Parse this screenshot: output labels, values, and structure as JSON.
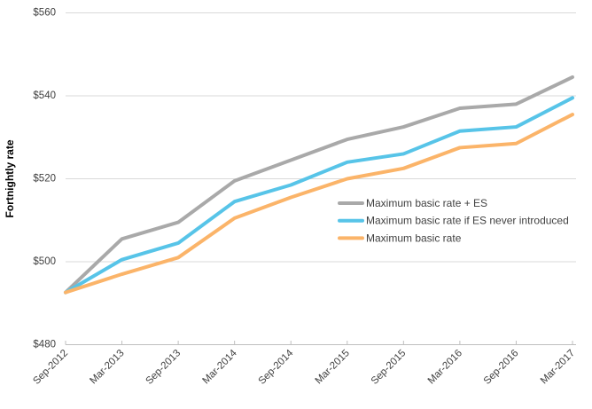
{
  "chart_data": {
    "type": "line",
    "title": "",
    "xlabel": "",
    "ylabel": "Fortnightly rate",
    "ylim": [
      480,
      560
    ],
    "ytick_values": [
      480,
      500,
      520,
      540,
      560
    ],
    "ytick_labels": [
      "$480",
      "$500",
      "$520",
      "$540",
      "$560"
    ],
    "grid": "horizontal-only",
    "legend_position": "inside-right-middle",
    "categories": [
      "Sep-2012",
      "Mar-2013",
      "Sep-2013",
      "Mar-2014",
      "Sep-2014",
      "Mar-2015",
      "Sep-2015",
      "Mar-2016",
      "Sep-2016",
      "Mar-2017"
    ],
    "series": [
      {
        "name": "Maximum basic rate + ES",
        "color": "#A9A9A9",
        "values": [
          492.6,
          505.5,
          509.5,
          519.5,
          524.5,
          529.5,
          532.5,
          537.0,
          538.0,
          544.5
        ]
      },
      {
        "name": "Maximum basic rate if ES never introduced",
        "color": "#57C4E8",
        "values": [
          492.6,
          500.5,
          504.5,
          514.5,
          518.5,
          524.0,
          526.0,
          531.5,
          532.5,
          539.5
        ]
      },
      {
        "name": "Maximum basic rate",
        "color": "#FBB469",
        "values": [
          492.6,
          497.0,
          501.0,
          510.5,
          515.5,
          520.0,
          522.5,
          527.5,
          528.5,
          535.5
        ]
      }
    ]
  },
  "colors": {
    "gridline": "#D9D9D9",
    "axis_line": "#BFBFBF",
    "text": "#404040",
    "background": "#FFFFFF"
  }
}
